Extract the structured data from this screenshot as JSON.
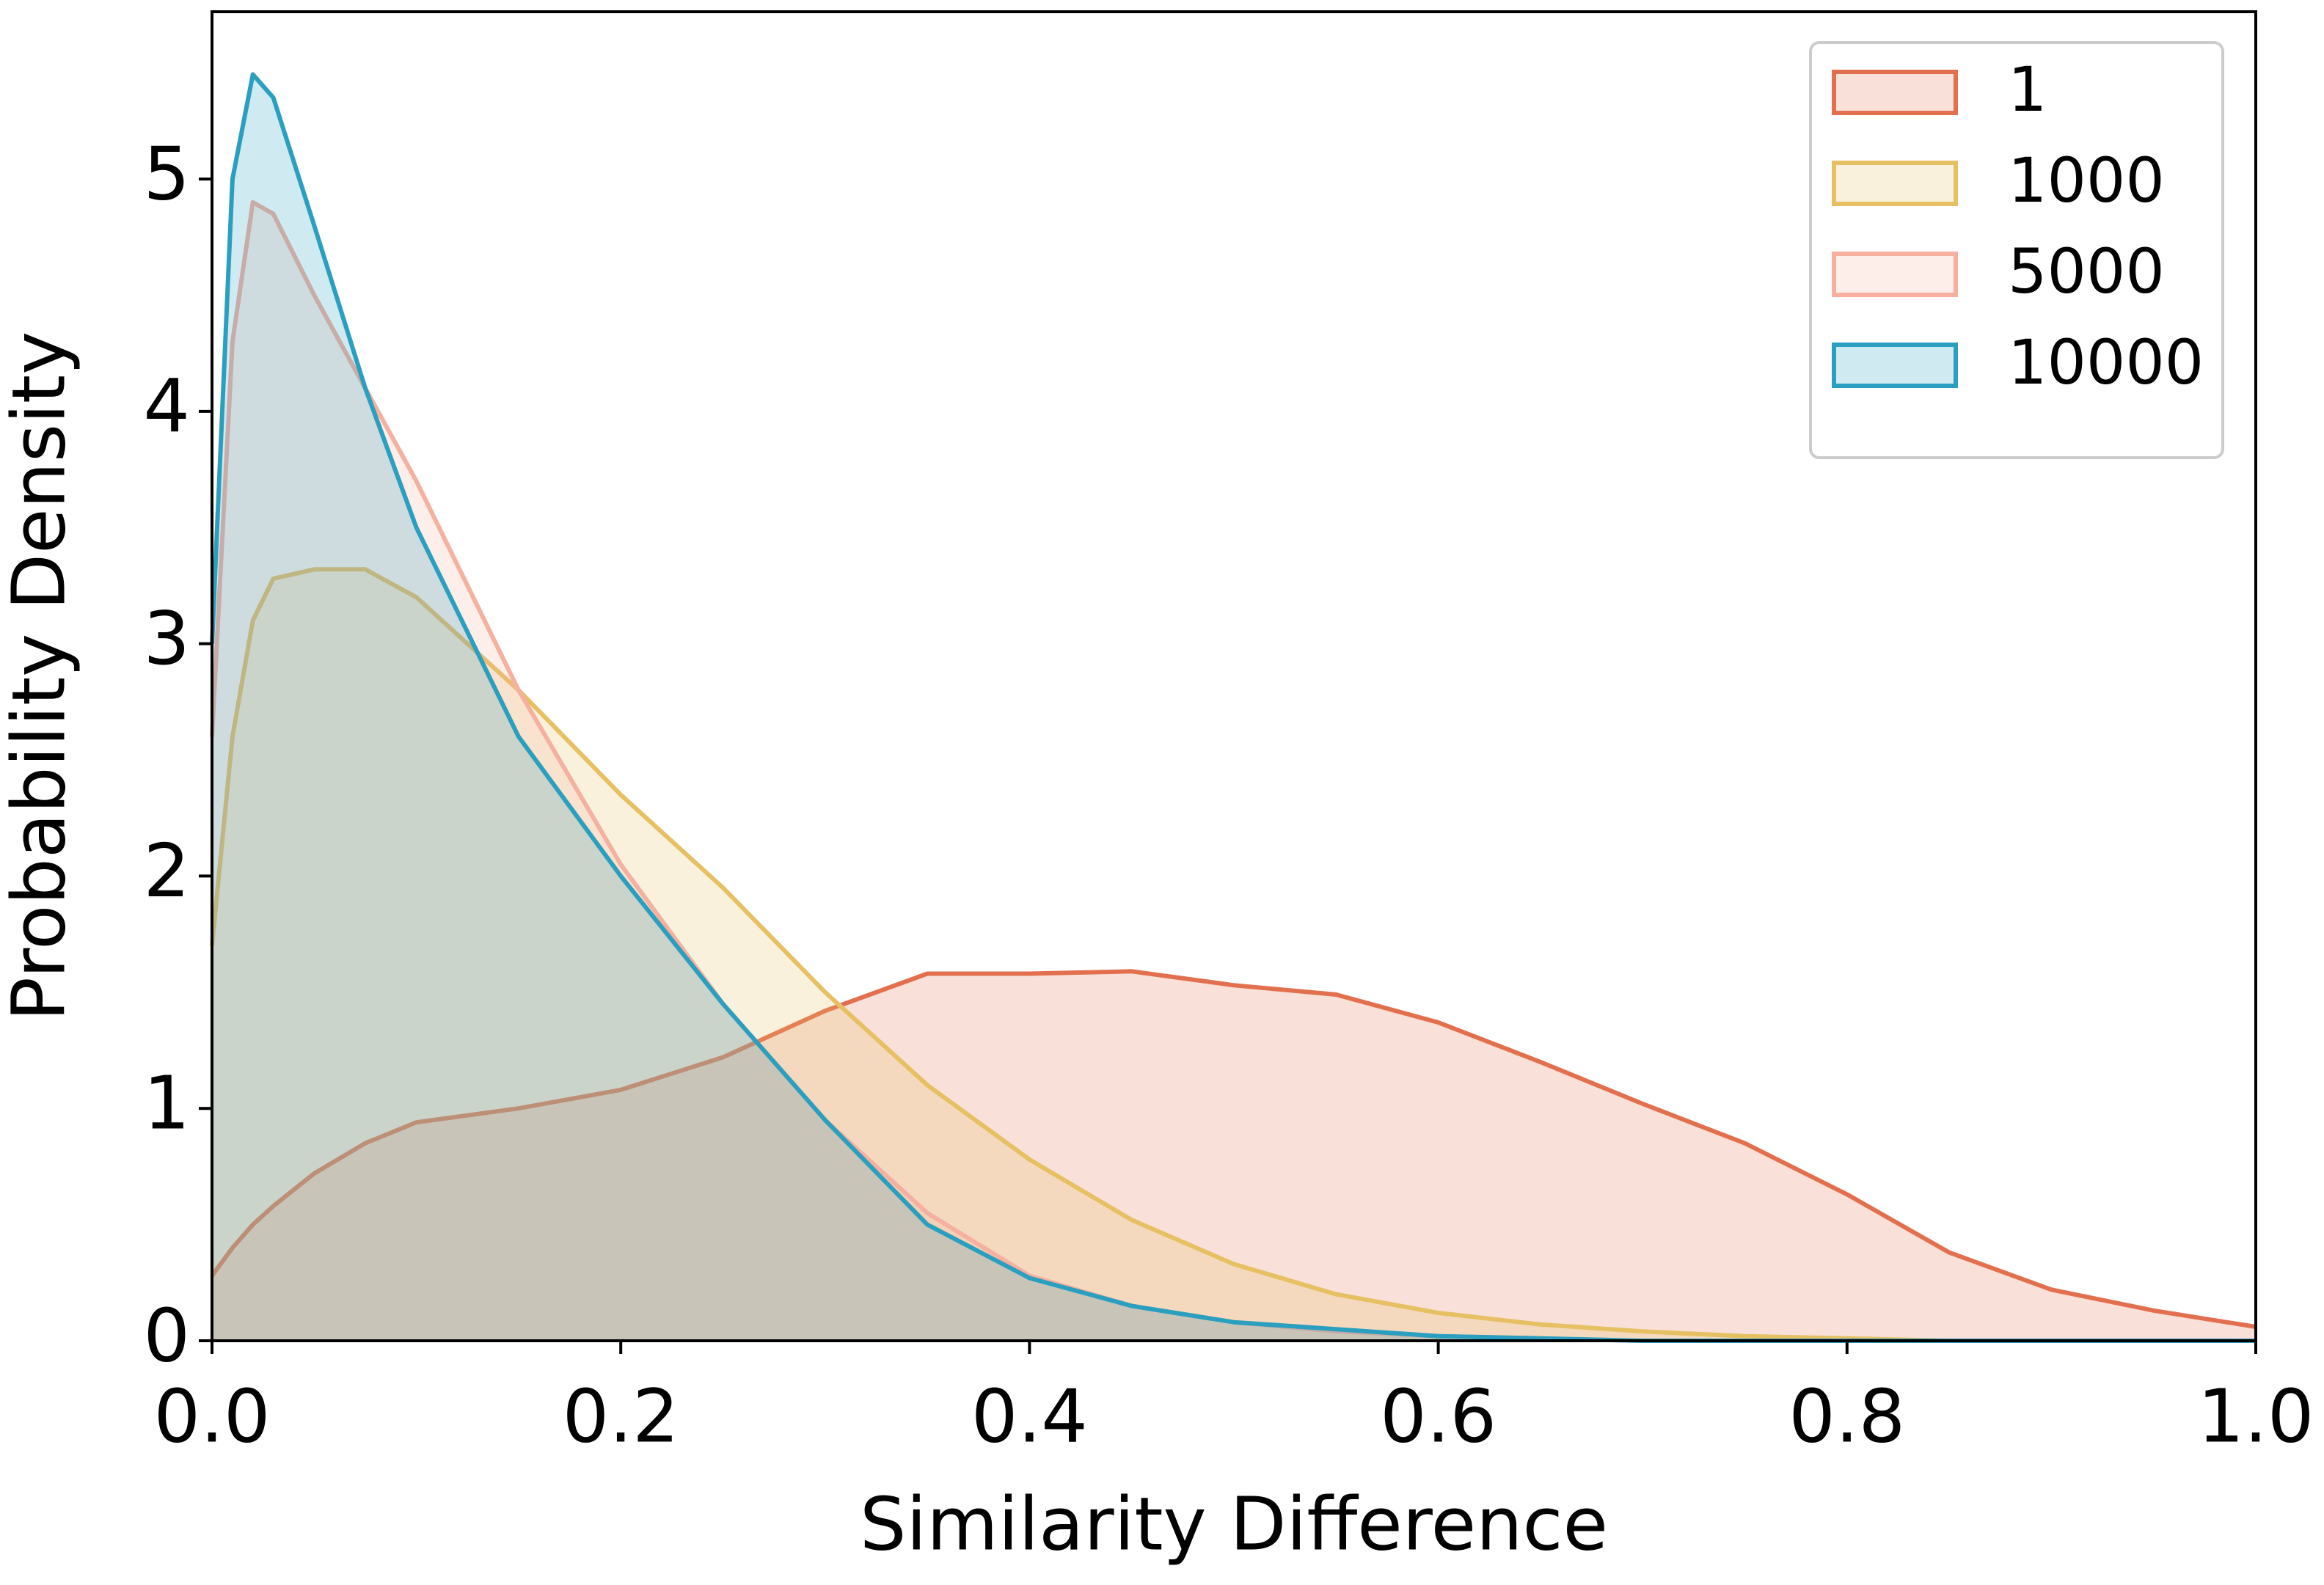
{
  "chart_data": {
    "type": "area",
    "x_label": "Similarity Difference",
    "y_label": "Probability Density",
    "x": [
      0,
      0.01,
      0.02,
      0.03,
      0.05,
      0.075,
      0.1,
      0.15,
      0.2,
      0.25,
      0.3,
      0.35,
      0.4,
      0.45,
      0.5,
      0.55,
      0.6,
      0.65,
      0.7,
      0.75,
      0.8,
      0.85,
      0.9,
      0.95,
      1.0
    ],
    "series": [
      {
        "name": "1",
        "color": "#e2704f",
        "values": [
          0.28,
          0.4,
          0.5,
          0.58,
          0.72,
          0.85,
          0.94,
          1.0,
          1.08,
          1.22,
          1.42,
          1.58,
          1.58,
          1.59,
          1.53,
          1.49,
          1.37,
          1.2,
          1.02,
          0.85,
          0.63,
          0.38,
          0.22,
          0.13,
          0.06
        ]
      },
      {
        "name": "1000",
        "color": "#e6c063",
        "values": [
          1.7,
          2.6,
          3.1,
          3.28,
          3.32,
          3.32,
          3.2,
          2.8,
          2.35,
          1.95,
          1.5,
          1.1,
          0.78,
          0.52,
          0.33,
          0.2,
          0.12,
          0.07,
          0.04,
          0.02,
          0.01,
          0,
          0,
          0,
          0
        ]
      },
      {
        "name": "5000",
        "color": "#f5b0a0",
        "values": [
          2.6,
          4.3,
          4.9,
          4.85,
          4.5,
          4.1,
          3.7,
          2.8,
          2.05,
          1.45,
          0.95,
          0.55,
          0.28,
          0.15,
          0.08,
          0.04,
          0.02,
          0.01,
          0,
          0,
          0,
          0,
          0,
          0,
          0
        ]
      },
      {
        "name": "10000",
        "color": "#2a9fbf",
        "values": [
          3.0,
          5.0,
          5.45,
          5.35,
          4.8,
          4.1,
          3.5,
          2.6,
          2.0,
          1.45,
          0.95,
          0.5,
          0.27,
          0.15,
          0.08,
          0.05,
          0.02,
          0.01,
          0,
          0,
          0,
          0,
          0,
          0,
          0
        ]
      }
    ],
    "xlim": [
      0,
      1
    ],
    "ylim": [
      0,
      5.72
    ],
    "xticks": [
      {
        "value": 0,
        "label": "0.0"
      },
      0.2,
      0.4,
      0.6,
      0.8,
      {
        "value": 1,
        "label": "1.0"
      }
    ],
    "yticks": [
      0,
      1,
      2,
      3,
      4,
      5
    ],
    "fill_opacity": 0.22,
    "legend": "upper right"
  }
}
